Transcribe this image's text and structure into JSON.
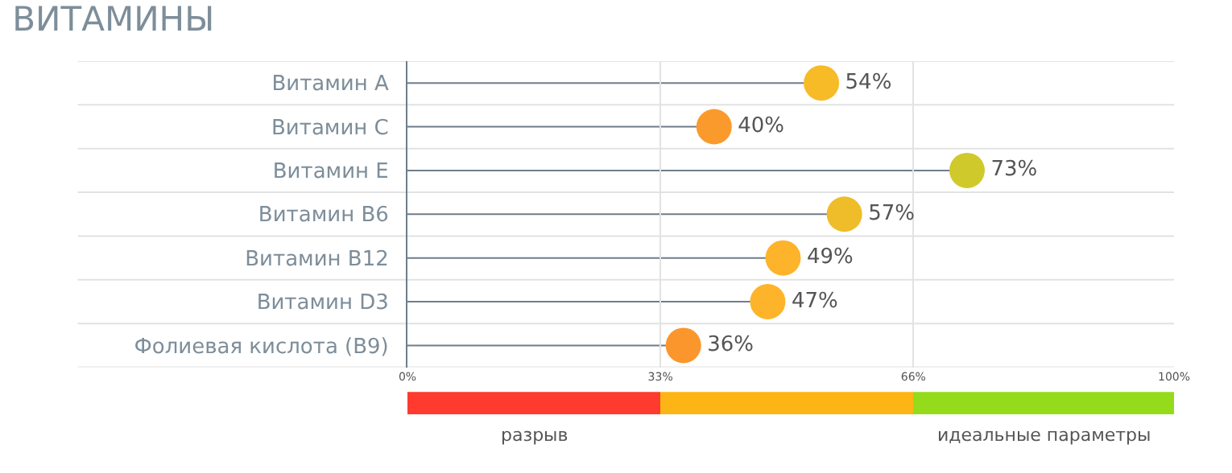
{
  "chart_data": [
    {
      "type": "lollipop",
      "orientation": "horizontal",
      "title": "ВИТАМИНЫ",
      "categories": [
        "Витамин A",
        "Витамин C",
        "Витамин E",
        "Витамин B6",
        "Витамин B12",
        "Витамин D3",
        "Фолиевая кислота (B9)"
      ],
      "values": [
        54,
        40,
        73,
        57,
        49,
        47,
        36
      ],
      "colors": [
        "#f6bb27",
        "#fb9a2c",
        "#d0c92c",
        "#efbd2a",
        "#fdb42a",
        "#fdb42a",
        "#fb962d"
      ],
      "value_labels": [
        "54%",
        "40%",
        "73%",
        "57%",
        "49%",
        "47%",
        "36%"
      ],
      "xlim": [
        0,
        100
      ],
      "xticks": [
        {
          "value": 0,
          "label": "0%"
        },
        {
          "value": 33,
          "label": "33%"
        },
        {
          "value": 66,
          "label": "66%"
        },
        {
          "value": 100,
          "label": "100%"
        }
      ],
      "grid": true,
      "marker": "circle"
    },
    {
      "type": "bar",
      "orientation": "horizontal",
      "stacked": true,
      "categories": [
        null
      ],
      "series": [
        {
          "name": "разрыв",
          "color": "#ff3a2e",
          "values": [
            33
          ]
        },
        {
          "color": "#fdb515",
          "values": [
            33
          ]
        },
        {
          "name": "идеальные параметры",
          "color": "#94dc1b",
          "values": [
            34
          ]
        }
      ],
      "xlim": [
        0,
        100
      ]
    }
  ]
}
